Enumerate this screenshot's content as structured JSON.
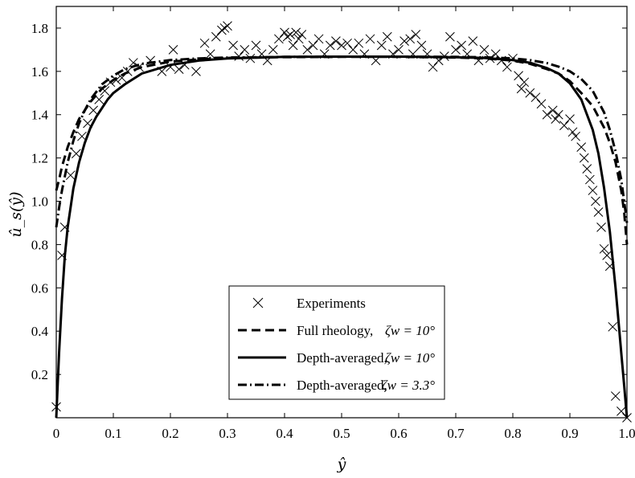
{
  "chart_data": {
    "type": "line",
    "title": "",
    "xlabel": "ŷ",
    "ylabel": "û_s(ŷ)",
    "xlim": [
      0,
      1.0
    ],
    "ylim": [
      0,
      1.9
    ],
    "grid": false,
    "legend_position": "bottom-center",
    "x_ticks": [
      0,
      0.1,
      0.2,
      0.3,
      0.4,
      0.5,
      0.6,
      0.7,
      0.8,
      0.9,
      1.0
    ],
    "x_tick_labels": [
      "0",
      "0.1",
      "0.2",
      "0.3",
      "0.4",
      "0.5",
      "0.6",
      "0.7",
      "0.8",
      "0.9",
      "1.0"
    ],
    "y_ticks": [
      0.2,
      0.4,
      0.6,
      0.8,
      1.0,
      1.2,
      1.4,
      1.6,
      1.8
    ],
    "y_tick_labels": [
      "0.2",
      "0.4",
      "0.6",
      "0.8",
      "1.0",
      "1.2",
      "1.4",
      "1.6",
      "1.8"
    ],
    "series": [
      {
        "name": "Experiments",
        "legend_label": "Experiments",
        "style": "cross",
        "x": [
          0.0,
          0.01,
          0.015,
          0.025,
          0.035,
          0.045,
          0.055,
          0.065,
          0.075,
          0.085,
          0.095,
          0.105,
          0.115,
          0.125,
          0.135,
          0.145,
          0.165,
          0.185,
          0.2,
          0.205,
          0.215,
          0.225,
          0.245,
          0.26,
          0.27,
          0.28,
          0.29,
          0.295,
          0.3,
          0.31,
          0.32,
          0.33,
          0.34,
          0.35,
          0.36,
          0.37,
          0.38,
          0.39,
          0.4,
          0.405,
          0.41,
          0.415,
          0.42,
          0.425,
          0.43,
          0.44,
          0.45,
          0.46,
          0.47,
          0.48,
          0.49,
          0.5,
          0.51,
          0.52,
          0.53,
          0.54,
          0.55,
          0.56,
          0.57,
          0.58,
          0.59,
          0.6,
          0.61,
          0.62,
          0.625,
          0.63,
          0.64,
          0.65,
          0.66,
          0.67,
          0.68,
          0.69,
          0.7,
          0.71,
          0.72,
          0.73,
          0.74,
          0.75,
          0.76,
          0.77,
          0.78,
          0.79,
          0.8,
          0.81,
          0.815,
          0.82,
          0.83,
          0.84,
          0.85,
          0.86,
          0.87,
          0.875,
          0.88,
          0.89,
          0.9,
          0.905,
          0.91,
          0.92,
          0.925,
          0.93,
          0.935,
          0.94,
          0.945,
          0.95,
          0.955,
          0.96,
          0.965,
          0.97,
          0.975,
          0.98,
          0.99,
          1.0
        ],
        "y": [
          0.05,
          0.75,
          0.88,
          1.12,
          1.22,
          1.3,
          1.36,
          1.42,
          1.47,
          1.51,
          1.55,
          1.56,
          1.57,
          1.6,
          1.64,
          1.62,
          1.65,
          1.6,
          1.62,
          1.7,
          1.61,
          1.63,
          1.6,
          1.73,
          1.68,
          1.76,
          1.79,
          1.8,
          1.81,
          1.72,
          1.67,
          1.7,
          1.66,
          1.72,
          1.68,
          1.65,
          1.7,
          1.75,
          1.78,
          1.76,
          1.77,
          1.72,
          1.78,
          1.75,
          1.77,
          1.7,
          1.72,
          1.75,
          1.68,
          1.72,
          1.74,
          1.72,
          1.73,
          1.7,
          1.73,
          1.68,
          1.75,
          1.65,
          1.72,
          1.76,
          1.68,
          1.7,
          1.74,
          1.75,
          1.68,
          1.77,
          1.72,
          1.68,
          1.62,
          1.65,
          1.67,
          1.76,
          1.7,
          1.72,
          1.68,
          1.74,
          1.65,
          1.7,
          1.66,
          1.68,
          1.65,
          1.62,
          1.66,
          1.58,
          1.52,
          1.55,
          1.5,
          1.48,
          1.45,
          1.4,
          1.42,
          1.38,
          1.4,
          1.35,
          1.38,
          1.32,
          1.3,
          1.25,
          1.2,
          1.15,
          1.1,
          1.05,
          1.0,
          0.95,
          0.88,
          0.78,
          0.75,
          0.7,
          0.42,
          0.1,
          0.03,
          0.0
        ]
      },
      {
        "name": "Full rheology, ζ_w = 10°",
        "legend_label": "Full rheology,",
        "legend_param": "ζw = 10°",
        "style": "dashed",
        "x": [
          0.0,
          0.005,
          0.01,
          0.02,
          0.03,
          0.04,
          0.05,
          0.06,
          0.08,
          0.1,
          0.12,
          0.15,
          0.2,
          0.25,
          0.3,
          0.4,
          0.5,
          0.6,
          0.7,
          0.75,
          0.8,
          0.83,
          0.86,
          0.88,
          0.9,
          0.92,
          0.94,
          0.96,
          0.97,
          0.98,
          0.99,
          0.995,
          1.0
        ],
        "y": [
          1.05,
          1.1,
          1.16,
          1.25,
          1.32,
          1.38,
          1.42,
          1.46,
          1.52,
          1.56,
          1.59,
          1.62,
          1.645,
          1.655,
          1.662,
          1.666,
          1.667,
          1.667,
          1.664,
          1.66,
          1.65,
          1.635,
          1.61,
          1.59,
          1.555,
          1.5,
          1.44,
          1.34,
          1.27,
          1.18,
          1.05,
          0.95,
          0.8
        ]
      },
      {
        "name": "Depth-averaged, ζ_w = 10°",
        "legend_label": "Depth-averaged,",
        "legend_param": "ζw = 10°",
        "style": "solid",
        "x": [
          0.0,
          0.005,
          0.01,
          0.015,
          0.02,
          0.03,
          0.04,
          0.05,
          0.06,
          0.07,
          0.08,
          0.09,
          0.1,
          0.12,
          0.15,
          0.2,
          0.25,
          0.3,
          0.4,
          0.5,
          0.6,
          0.7,
          0.75,
          0.8,
          0.83,
          0.86,
          0.88,
          0.9,
          0.92,
          0.94,
          0.95,
          0.96,
          0.97,
          0.98,
          0.985,
          0.99,
          0.995,
          1.0
        ],
        "y": [
          0.0,
          0.3,
          0.55,
          0.75,
          0.88,
          1.06,
          1.18,
          1.27,
          1.34,
          1.39,
          1.43,
          1.47,
          1.5,
          1.54,
          1.59,
          1.63,
          1.65,
          1.66,
          1.667,
          1.668,
          1.668,
          1.665,
          1.662,
          1.652,
          1.64,
          1.615,
          1.59,
          1.545,
          1.47,
          1.33,
          1.22,
          1.06,
          0.86,
          0.6,
          0.45,
          0.3,
          0.15,
          0.0
        ]
      },
      {
        "name": "Depth-averaged, ζ_w = 3.3°",
        "legend_label": "Depth-averaged,",
        "legend_param": "ζw = 3.3°",
        "style": "dashdot",
        "x": [
          0.0,
          0.005,
          0.01,
          0.02,
          0.03,
          0.04,
          0.05,
          0.06,
          0.08,
          0.1,
          0.12,
          0.15,
          0.2,
          0.25,
          0.3,
          0.4,
          0.5,
          0.6,
          0.7,
          0.75,
          0.8,
          0.83,
          0.86,
          0.88,
          0.9,
          0.92,
          0.94,
          0.96,
          0.97,
          0.98,
          0.99,
          0.995,
          1.0
        ],
        "y": [
          0.88,
          0.97,
          1.05,
          1.18,
          1.28,
          1.36,
          1.42,
          1.47,
          1.54,
          1.58,
          1.61,
          1.635,
          1.652,
          1.66,
          1.664,
          1.667,
          1.668,
          1.668,
          1.667,
          1.665,
          1.66,
          1.652,
          1.638,
          1.622,
          1.6,
          1.565,
          1.51,
          1.41,
          1.33,
          1.23,
          1.1,
          1.0,
          0.9
        ]
      }
    ]
  }
}
